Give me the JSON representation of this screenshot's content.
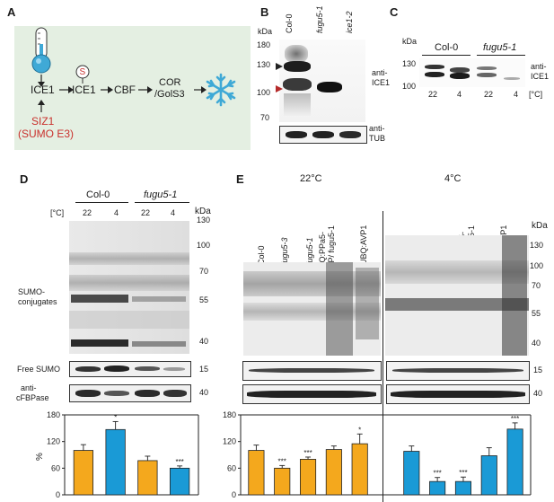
{
  "panels": {
    "A": {
      "label": "A",
      "nodes": {
        "ice1": "ICE1",
        "ice1s": "ICE1",
        "sumo_s": "S",
        "cbf": "CBF",
        "cor1": "COR",
        "cor2": "/GolS3",
        "siz1": "SIZ1",
        "sumo_e3": "(SUMO E3)"
      },
      "colors": {
        "background": "#e4efe2",
        "sumo_red": "#c9302c",
        "snowflake": "#3fa9d6"
      }
    },
    "B": {
      "label": "B",
      "kda": "kDa",
      "lanes": [
        "Col-0",
        "fugu5-1",
        "ice1-2"
      ],
      "markers": [
        "180",
        "130",
        "100",
        "70"
      ],
      "anti_ice1": [
        "anti-",
        "ICE1"
      ],
      "anti_tub": [
        "anti-",
        "TUB"
      ]
    },
    "C": {
      "label": "C",
      "kda": "kDa",
      "groups": [
        "Col-0",
        "fugu5-1"
      ],
      "markers": [
        "130",
        "100"
      ],
      "temps": [
        "22",
        "4",
        "22",
        "4"
      ],
      "unit": "[°C]",
      "anti_ice1": [
        "anti-",
        "ICE1"
      ]
    },
    "D": {
      "label": "D",
      "kda": "kDa",
      "groups": [
        "Col-0",
        "fugu5-1"
      ],
      "unit": "[°C]",
      "temps": [
        "22",
        "4",
        "22",
        "4"
      ],
      "markers": [
        "130",
        "100",
        "70",
        "55",
        "40"
      ],
      "sumo_conj": [
        "SUMO-",
        "conjugates"
      ],
      "free_sumo": "Free SUMO",
      "free_sumo_marker": "15",
      "cfbpase": [
        "anti-",
        "cFBPase"
      ],
      "cfbpase_marker": "40",
      "ylabel": "%"
    },
    "E": {
      "label": "E",
      "kda": "kDa",
      "temp_22": "22°C",
      "temp_4": "4°C",
      "lanes": [
        "Col-0",
        "fugu5-3",
        "fugu5-1",
        "UBQ:PPa5-\nGFP/ fugu5-1",
        "UBQ:AVP1"
      ],
      "markers": [
        "130",
        "100",
        "70",
        "55",
        "40"
      ],
      "sumo_marker": "15",
      "load_marker": "40"
    }
  },
  "chart_data": [
    {
      "type": "bar",
      "panel": "D",
      "categories": [
        "Col-0 22",
        "Col-0 4",
        "fugu5-1 22",
        "fugu5-1 4"
      ],
      "values": [
        100,
        147,
        77,
        60
      ],
      "errors": [
        13,
        18,
        10,
        5
      ],
      "significance": [
        "",
        "*",
        "",
        "***"
      ],
      "colors": [
        "#f4a81d",
        "#1a9ad6",
        "#f4a81d",
        "#1a9ad6"
      ],
      "ylabel": "%",
      "yticks": [
        0,
        60,
        120,
        180
      ],
      "ylim": [
        0,
        180
      ]
    },
    {
      "type": "bar",
      "panel": "E",
      "categories": [
        "22 Col-0",
        "22 fugu5-3",
        "22 fugu5-1",
        "22 UBQ:PPa5-GFP/fugu5-1",
        "22 UBQ:AVP1",
        "4 Col-0",
        "4 fugu5-3",
        "4 fugu5-1",
        "4 UBQ:PPa5-GFP/fugu5-1",
        "4 UBQ:AVP1"
      ],
      "values": [
        100,
        60,
        80,
        102,
        115,
        98,
        30,
        30,
        88,
        148
      ],
      "errors": [
        12,
        6,
        5,
        8,
        22,
        12,
        9,
        10,
        18,
        14
      ],
      "significance": [
        "",
        "***",
        "***",
        "",
        "*",
        "",
        "***",
        "***",
        "",
        "***"
      ],
      "colors": [
        "#f4a81d",
        "#f4a81d",
        "#f4a81d",
        "#f4a81d",
        "#f4a81d",
        "#1a9ad6",
        "#1a9ad6",
        "#1a9ad6",
        "#1a9ad6",
        "#1a9ad6"
      ],
      "yticks": [
        0,
        60,
        120,
        180
      ],
      "ylim": [
        0,
        180
      ]
    }
  ]
}
